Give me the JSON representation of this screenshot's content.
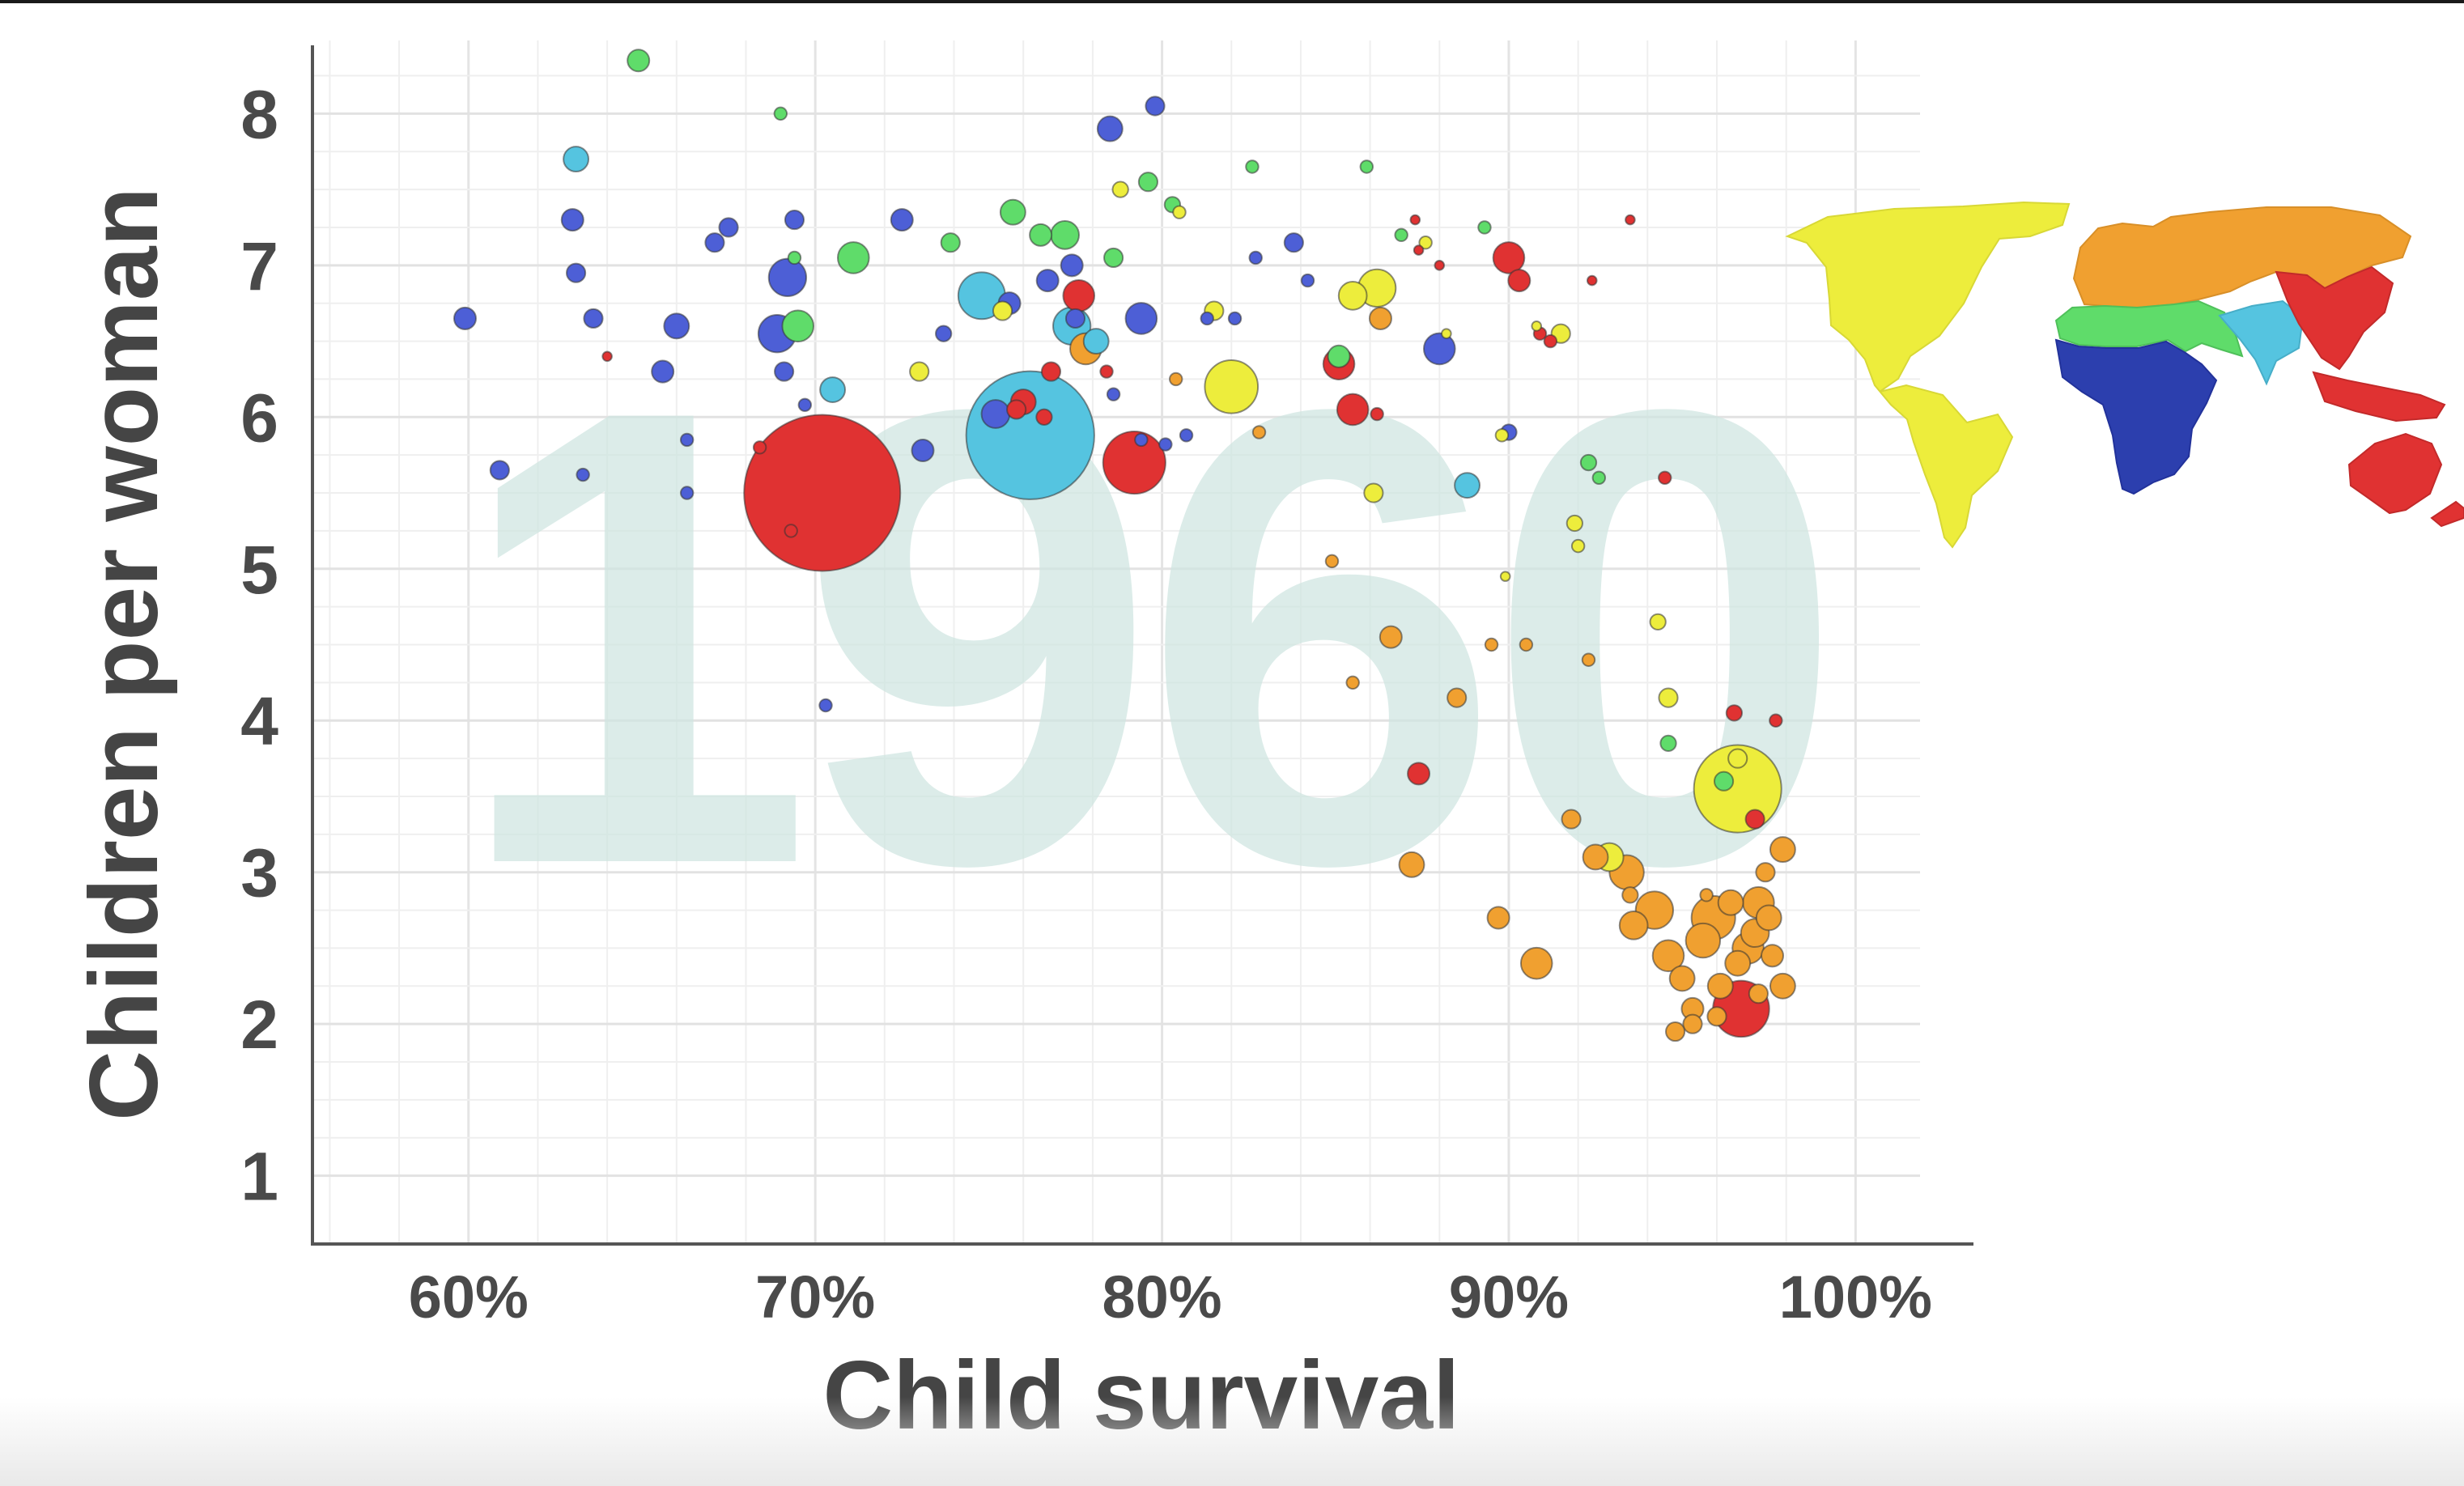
{
  "chart_data": {
    "type": "scatter",
    "variant": "bubble",
    "year_watermark": "1960",
    "xlabel": "Child survival",
    "ylabel": "Children per woman",
    "x_ticks": [
      "60%",
      "70%",
      "80%",
      "90%",
      "100%"
    ],
    "y_ticks": [
      "1",
      "2",
      "3",
      "4",
      "5",
      "6",
      "7",
      "8"
    ],
    "xlim": [
      55.5,
      103.4
    ],
    "ylim": [
      0.55,
      8.45
    ],
    "grid": true,
    "legend": "world map, right",
    "region_colors": {
      "sub_saharan_africa": "#4d5fd6",
      "north_africa_middle_east": "#5fdc6a",
      "south_asia": "#55c4e0",
      "east_asia_pacific": "#e03232",
      "america": "#eded3c",
      "europe_central_asia": "#f0a030"
    },
    "series": [
      {
        "region": "sub_saharan_africa",
        "color": "#4d5fd6",
        "points": [
          [
            59.9,
            6.65,
            7
          ],
          [
            60.9,
            5.65,
            6
          ],
          [
            63.0,
            7.3,
            7
          ],
          [
            63.1,
            6.95,
            6
          ],
          [
            63.3,
            5.62,
            4
          ],
          [
            63.6,
            6.65,
            6
          ],
          [
            65.6,
            6.3,
            7
          ],
          [
            66.0,
            6.6,
            8
          ],
          [
            66.3,
            5.5,
            4
          ],
          [
            66.3,
            5.85,
            4
          ],
          [
            67.1,
            7.15,
            6
          ],
          [
            67.5,
            7.25,
            6
          ],
          [
            68.9,
            6.55,
            12
          ],
          [
            69.1,
            6.3,
            6
          ],
          [
            69.2,
            6.92,
            12
          ],
          [
            69.4,
            7.3,
            6
          ],
          [
            69.7,
            6.08,
            4
          ],
          [
            70.3,
            4.1,
            4
          ],
          [
            72.5,
            7.3,
            7
          ],
          [
            73.1,
            5.78,
            7
          ],
          [
            73.7,
            6.55,
            5
          ],
          [
            75.2,
            6.02,
            9
          ],
          [
            75.6,
            6.75,
            7
          ],
          [
            76.7,
            6.9,
            7
          ],
          [
            77.4,
            7.0,
            7
          ],
          [
            77.5,
            6.65,
            6
          ],
          [
            78.5,
            7.9,
            8
          ],
          [
            78.6,
            6.15,
            4
          ],
          [
            79.4,
            6.65,
            10
          ],
          [
            79.4,
            5.85,
            4
          ],
          [
            79.8,
            8.05,
            6
          ],
          [
            80.1,
            5.82,
            4
          ],
          [
            80.7,
            5.88,
            4
          ],
          [
            81.3,
            6.65,
            4
          ],
          [
            82.1,
            6.65,
            4
          ],
          [
            82.7,
            7.05,
            4
          ],
          [
            83.8,
            7.15,
            6
          ],
          [
            84.2,
            6.9,
            4
          ],
          [
            88.0,
            6.45,
            10
          ],
          [
            90.0,
            5.9,
            5
          ]
        ]
      },
      {
        "region": "north_africa_middle_east",
        "color": "#5fdc6a",
        "points": [
          [
            64.9,
            8.35,
            7
          ],
          [
            69.0,
            8.0,
            4
          ],
          [
            69.4,
            7.05,
            4
          ],
          [
            69.5,
            6.6,
            10
          ],
          [
            71.1,
            7.05,
            10
          ],
          [
            73.9,
            7.15,
            6
          ],
          [
            75.7,
            7.35,
            8
          ],
          [
            76.5,
            7.2,
            7
          ],
          [
            77.2,
            7.2,
            9
          ],
          [
            78.6,
            7.05,
            6
          ],
          [
            79.6,
            7.55,
            6
          ],
          [
            80.3,
            7.4,
            5
          ],
          [
            82.6,
            7.65,
            4
          ],
          [
            85.1,
            6.4,
            7
          ],
          [
            85.9,
            7.65,
            4
          ],
          [
            86.9,
            7.2,
            4
          ],
          [
            89.3,
            7.25,
            4
          ],
          [
            92.3,
            5.7,
            5
          ],
          [
            92.6,
            5.6,
            4
          ],
          [
            94.6,
            3.85,
            5
          ],
          [
            96.2,
            3.6,
            6
          ]
        ]
      },
      {
        "region": "south_asia",
        "color": "#55c4e0",
        "points": [
          [
            63.1,
            7.7,
            8
          ],
          [
            70.5,
            6.18,
            8
          ],
          [
            74.8,
            6.8,
            15
          ],
          [
            77.4,
            6.6,
            12
          ],
          [
            78.1,
            6.5,
            8
          ],
          [
            76.2,
            5.88,
            41
          ],
          [
            88.8,
            5.55,
            8
          ]
        ]
      },
      {
        "region": "east_asia_pacific",
        "color": "#e03232",
        "points": [
          [
            64.0,
            6.4,
            3
          ],
          [
            68.4,
            5.8,
            4
          ],
          [
            69.3,
            5.25,
            4
          ],
          [
            70.2,
            5.5,
            50
          ],
          [
            75.8,
            6.05,
            6
          ],
          [
            76.0,
            6.1,
            8
          ],
          [
            76.6,
            6.0,
            5
          ],
          [
            76.8,
            6.3,
            6
          ],
          [
            77.6,
            6.8,
            10
          ],
          [
            78.4,
            6.3,
            4
          ],
          [
            79.2,
            5.7,
            20
          ],
          [
            85.1,
            6.35,
            10
          ],
          [
            85.5,
            6.05,
            10
          ],
          [
            86.2,
            6.02,
            4
          ],
          [
            87.3,
            7.3,
            3
          ],
          [
            87.4,
            7.1,
            3
          ],
          [
            87.4,
            3.65,
            7
          ],
          [
            88.0,
            7.0,
            3
          ],
          [
            90.0,
            7.05,
            10
          ],
          [
            90.3,
            6.9,
            7
          ],
          [
            90.9,
            6.55,
            4
          ],
          [
            91.2,
            6.5,
            4
          ],
          [
            92.4,
            6.9,
            3
          ],
          [
            93.5,
            7.3,
            3
          ],
          [
            94.5,
            5.6,
            4
          ],
          [
            96.5,
            4.05,
            5
          ],
          [
            97.1,
            3.35,
            6
          ],
          [
            96.7,
            2.1,
            18
          ],
          [
            97.7,
            4.0,
            4
          ]
        ]
      },
      {
        "region": "america",
        "color": "#eded3c",
        "points": [
          [
            73.0,
            6.3,
            6
          ],
          [
            75.4,
            6.7,
            6
          ],
          [
            78.8,
            7.5,
            5
          ],
          [
            80.5,
            7.35,
            4
          ],
          [
            81.5,
            6.7,
            6
          ],
          [
            82.0,
            6.2,
            17
          ],
          [
            85.5,
            6.8,
            9
          ],
          [
            86.2,
            6.85,
            12
          ],
          [
            86.1,
            5.5,
            6
          ],
          [
            87.6,
            7.15,
            4
          ],
          [
            88.2,
            6.55,
            3
          ],
          [
            89.8,
            5.88,
            4
          ],
          [
            89.9,
            4.95,
            3
          ],
          [
            90.8,
            6.6,
            3
          ],
          [
            91.5,
            6.55,
            6
          ],
          [
            91.9,
            5.3,
            5
          ],
          [
            92.0,
            5.15,
            4
          ],
          [
            92.9,
            3.1,
            9
          ],
          [
            94.3,
            4.65,
            5
          ],
          [
            94.6,
            4.15,
            6
          ],
          [
            96.6,
            3.75,
            6
          ],
          [
            96.6,
            3.55,
            28
          ]
        ]
      },
      {
        "region": "europe_central_asia",
        "color": "#f0a030",
        "points": [
          [
            77.8,
            6.45,
            10
          ],
          [
            80.4,
            6.25,
            4
          ],
          [
            82.8,
            5.9,
            4
          ],
          [
            84.9,
            5.05,
            4
          ],
          [
            86.3,
            6.65,
            7
          ],
          [
            85.5,
            4.25,
            4
          ],
          [
            86.6,
            4.55,
            7
          ],
          [
            88.5,
            4.15,
            6
          ],
          [
            89.5,
            4.5,
            4
          ],
          [
            90.5,
            4.5,
            4
          ],
          [
            92.3,
            4.4,
            4
          ],
          [
            87.2,
            3.05,
            8
          ],
          [
            89.7,
            2.7,
            7
          ],
          [
            90.8,
            2.4,
            10
          ],
          [
            91.8,
            3.35,
            6
          ],
          [
            92.5,
            3.1,
            8
          ],
          [
            93.4,
            3.0,
            11
          ],
          [
            93.5,
            2.85,
            5
          ],
          [
            93.6,
            2.65,
            9
          ],
          [
            94.2,
            2.75,
            12
          ],
          [
            94.6,
            2.45,
            10
          ],
          [
            95.0,
            2.3,
            8
          ],
          [
            95.3,
            2.1,
            7
          ],
          [
            95.6,
            2.55,
            11
          ],
          [
            95.9,
            2.7,
            14
          ],
          [
            96.1,
            2.25,
            8
          ],
          [
            96.4,
            2.8,
            8
          ],
          [
            96.6,
            2.4,
            8
          ],
          [
            96.9,
            2.5,
            10
          ],
          [
            97.1,
            2.6,
            9
          ],
          [
            97.2,
            2.8,
            10
          ],
          [
            97.4,
            3.0,
            6
          ],
          [
            97.5,
            2.7,
            8
          ],
          [
            97.6,
            2.45,
            7
          ],
          [
            97.9,
            3.15,
            8
          ],
          [
            97.9,
            2.25,
            8
          ],
          [
            95.3,
            2.0,
            6
          ],
          [
            94.8,
            1.95,
            6
          ],
          [
            96.0,
            2.05,
            6
          ],
          [
            97.2,
            2.2,
            6
          ],
          [
            95.7,
            2.85,
            4
          ]
        ]
      }
    ]
  }
}
